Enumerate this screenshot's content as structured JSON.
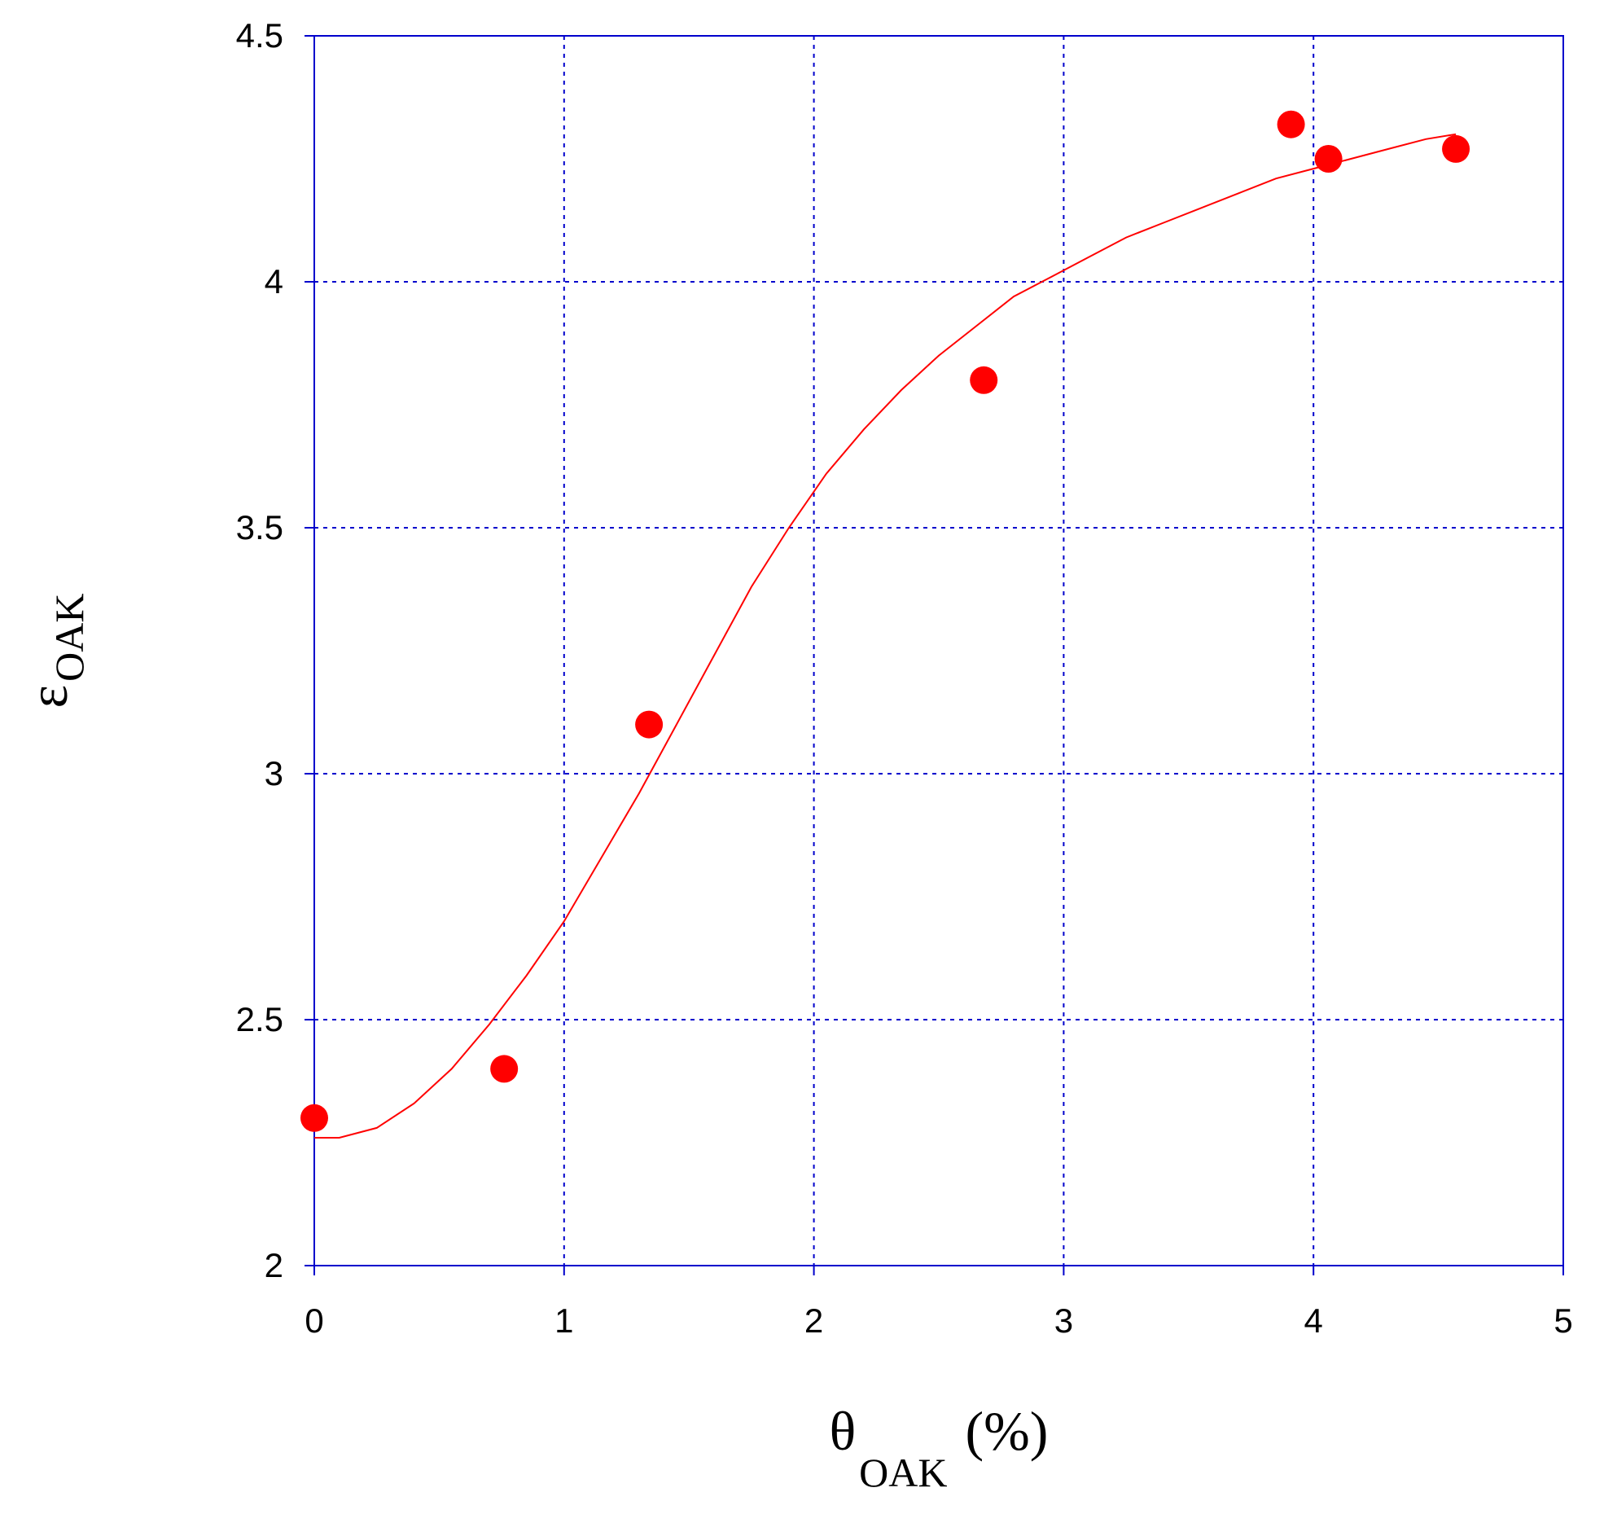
{
  "chart_data": {
    "type": "scatter",
    "title": "",
    "xlabel": {
      "symbol": "θ",
      "subscript": "OAK",
      "unit": "(%)"
    },
    "ylabel": {
      "symbol": "ε",
      "subscript": "OAK"
    },
    "xlim": [
      0,
      5
    ],
    "ylim": [
      2,
      4.5
    ],
    "x_ticks": [
      0,
      1,
      2,
      3,
      4,
      5
    ],
    "x_tick_labels": [
      "0",
      "1",
      "2",
      "3",
      "4",
      "5"
    ],
    "y_ticks": [
      2,
      2.5,
      3,
      3.5,
      4,
      4.5
    ],
    "y_tick_labels": [
      "2",
      "2.5",
      "3",
      "3.5",
      "4",
      "4.5"
    ],
    "grid": true,
    "legend": "none",
    "colors": {
      "frame": "#0000cc",
      "grid": "#0000cc",
      "points": "#ff0000",
      "fit": "#ff0000"
    },
    "series": [
      {
        "kind": "points",
        "x": [
          0,
          0.76,
          1.34,
          2.68,
          3.91,
          4.06,
          4.57
        ],
        "y": [
          2.3,
          2.4,
          3.1,
          3.8,
          4.32,
          4.25,
          4.27
        ]
      },
      {
        "kind": "fit-line",
        "x": [
          0,
          0.1,
          0.25,
          0.4,
          0.55,
          0.7,
          0.85,
          1.0,
          1.15,
          1.3,
          1.45,
          1.6,
          1.75,
          1.9,
          2.05,
          2.2,
          2.35,
          2.5,
          2.65,
          2.8,
          2.95,
          3.1,
          3.25,
          3.4,
          3.55,
          3.7,
          3.85,
          4.0,
          4.15,
          4.3,
          4.45,
          4.57
        ],
        "y": [
          2.26,
          2.26,
          2.28,
          2.33,
          2.4,
          2.49,
          2.59,
          2.7,
          2.83,
          2.96,
          3.1,
          3.24,
          3.38,
          3.5,
          3.61,
          3.7,
          3.78,
          3.85,
          3.91,
          3.97,
          4.01,
          4.05,
          4.09,
          4.12,
          4.15,
          4.18,
          4.21,
          4.23,
          4.25,
          4.27,
          4.29,
          4.3
        ]
      }
    ]
  }
}
